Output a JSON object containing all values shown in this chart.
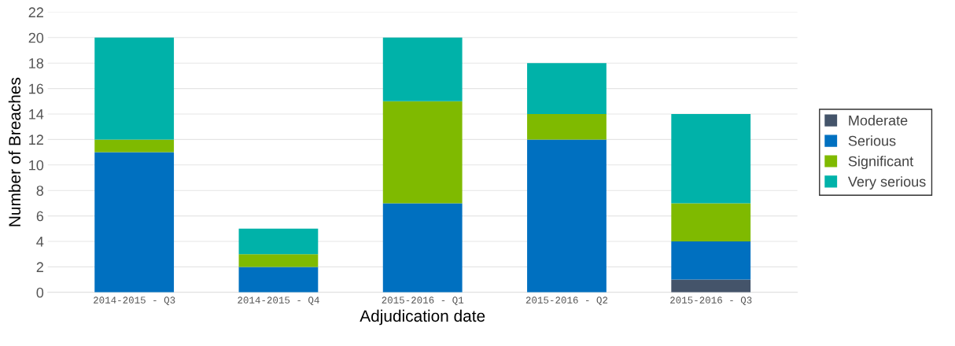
{
  "chart_data": {
    "type": "bar",
    "stacked": true,
    "xlabel": "Adjudication date",
    "ylabel": "Number of Breaches",
    "categories": [
      "2014-2015 - Q3",
      "2014-2015 - Q4",
      "2015-2016 - Q1",
      "2015-2016 - Q2",
      "2015-2016 - Q3"
    ],
    "series": [
      {
        "name": "Moderate",
        "color": "#44546a",
        "values": [
          0,
          0,
          0,
          0,
          1
        ]
      },
      {
        "name": "Serious",
        "color": "#0070c0",
        "values": [
          11,
          2,
          7,
          12,
          3
        ]
      },
      {
        "name": "Significant",
        "color": "#7fba00",
        "values": [
          1,
          1,
          8,
          2,
          3
        ]
      },
      {
        "name": "Very serious",
        "color": "#00b2a9",
        "values": [
          8,
          2,
          5,
          4,
          7
        ]
      }
    ],
    "ylim": [
      0,
      22
    ],
    "yticks": [
      0,
      2,
      4,
      6,
      8,
      10,
      12,
      14,
      16,
      18,
      20,
      22
    ],
    "grid": "y",
    "legend": "right"
  }
}
